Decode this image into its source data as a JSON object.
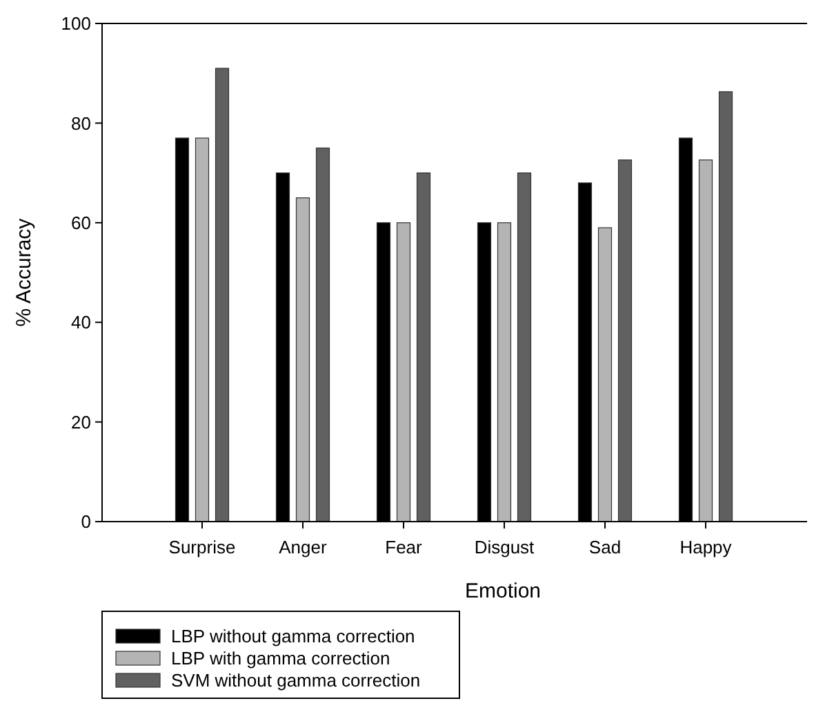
{
  "chart_data": {
    "type": "bar",
    "xlabel": "Emotion",
    "ylabel": "% Accuracy",
    "categories": [
      "Surprise",
      "Anger",
      "Fear",
      "Disgust",
      "Sad",
      "Happy"
    ],
    "series": [
      {
        "name": "LBP without gamma correction",
        "color": "#000000",
        "values": [
          77,
          70,
          60,
          60,
          68,
          77
        ]
      },
      {
        "name": "LBP with gamma correction",
        "color": "#b4b4b4",
        "values": [
          77,
          65,
          60,
          60,
          59,
          72.6
        ]
      },
      {
        "name": "SVM without gamma correction",
        "color": "#606060",
        "values": [
          91,
          75,
          70,
          70,
          72.6,
          86.3
        ]
      }
    ],
    "ylim": [
      0,
      100
    ],
    "yticks": [
      0,
      20,
      40,
      60,
      80,
      100
    ],
    "legend": "bottom left"
  }
}
